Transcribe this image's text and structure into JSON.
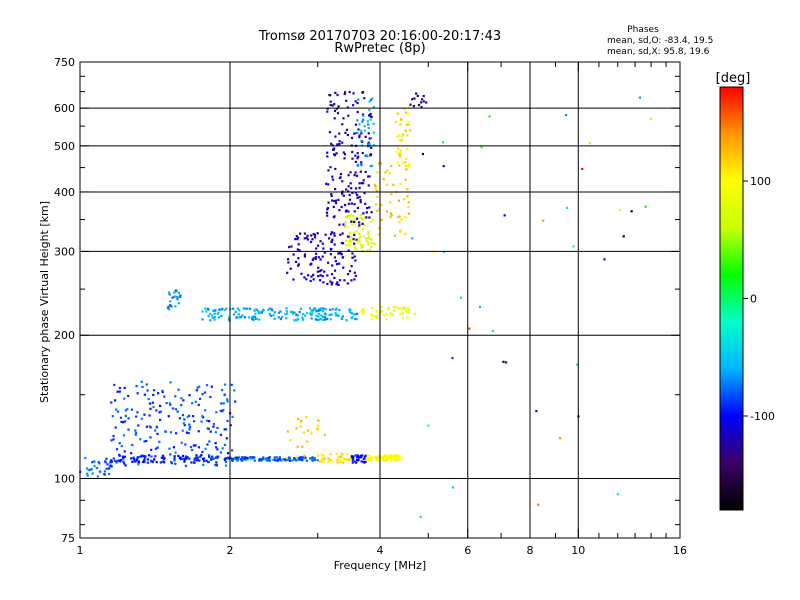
{
  "chart_data": {
    "type": "scatter",
    "title": "Tromsø 20170703 20:16:00-20:17:43",
    "subtitle": "RwPretec (8p)",
    "stats": {
      "heading": "Phases",
      "line_o": "mean, sd,O: -83.4, 19.5",
      "line_x": "mean, sd,X:  95.8, 19.6"
    },
    "xlabel": "Frequency [MHz]",
    "ylabel": "Stationary phase Virtual Height [km]",
    "xscale": "log",
    "yscale": "log",
    "xlim": [
      1,
      16
    ],
    "ylim": [
      75,
      750
    ],
    "x_ticks": [
      1,
      2,
      4,
      6,
      8,
      10,
      16
    ],
    "x_tick_labels": [
      "1",
      "2",
      "4",
      "6",
      "8",
      "10",
      "16"
    ],
    "x_grid": [
      2,
      4,
      6,
      8,
      10
    ],
    "y_ticks": [
      75,
      100,
      200,
      300,
      400,
      500,
      600,
      750
    ],
    "y_tick_labels": [
      "75",
      "100",
      "200",
      "300",
      "400",
      "500",
      "600",
      "750"
    ],
    "y_grid": [
      100,
      200,
      300,
      400,
      500,
      600
    ],
    "grid": true,
    "colorbar": {
      "label": "[deg]",
      "range": [
        -180,
        180
      ],
      "ticks": [
        -100,
        0,
        100
      ],
      "tick_labels": [
        "-100",
        "0",
        "100"
      ],
      "colors": [
        "#000000",
        "#3a0066",
        "#0000ff",
        "#00b4ff",
        "#00ffc8",
        "#00ff00",
        "#c8ff00",
        "#ffff00",
        "#ff9600",
        "#ff0000"
      ]
    },
    "series_groups": [
      {
        "x": [
          1.0,
          1.15
        ],
        "y": [
          100,
          112
        ],
        "phase": -75,
        "n": 30
      },
      {
        "x": [
          1.15,
          1.9
        ],
        "y": [
          108,
          112
        ],
        "phase": -95,
        "n": 110
      },
      {
        "x": [
          1.15,
          2.05
        ],
        "y": [
          106,
          160
        ],
        "phase": -85,
        "n": 210
      },
      {
        "x": [
          1.95,
          3.0
        ],
        "y": [
          109,
          111
        ],
        "phase": -82,
        "n": 120
      },
      {
        "x": [
          2.6,
          3.1
        ],
        "y": [
          110,
          135
        ],
        "phase": 120,
        "n": 22
      },
      {
        "x": [
          3.0,
          3.5
        ],
        "y": [
          108,
          113
        ],
        "phase": 110,
        "n": 45
      },
      {
        "x": [
          3.5,
          3.75
        ],
        "y": [
          108,
          112
        ],
        "phase": -100,
        "n": 30
      },
      {
        "x": [
          3.75,
          4.4
        ],
        "y": [
          109,
          112
        ],
        "phase": 95,
        "n": 70
      },
      {
        "x": [
          1.5,
          1.6
        ],
        "y": [
          225,
          250
        ],
        "phase": -70,
        "n": 22
      },
      {
        "x": [
          1.75,
          3.6
        ],
        "y": [
          215,
          228
        ],
        "phase": -60,
        "n": 170
      },
      {
        "x": [
          3.6,
          4.6
        ],
        "y": [
          215,
          230
        ],
        "phase": 90,
        "n": 45
      },
      {
        "x": [
          2.6,
          3.6
        ],
        "y": [
          255,
          330
        ],
        "phase": -115,
        "n": 130
      },
      {
        "x": [
          3.4,
          3.9
        ],
        "y": [
          300,
          360
        ],
        "phase": 70,
        "n": 70
      },
      {
        "x": [
          3.9,
          4.6
        ],
        "y": [
          320,
          470
        ],
        "phase": 120,
        "n": 50
      },
      {
        "x": [
          3.1,
          3.85
        ],
        "y": [
          340,
          650
        ],
        "phase": -120,
        "n": 180
      },
      {
        "x": [
          3.6,
          3.9
        ],
        "y": [
          450,
          640
        ],
        "phase": -60,
        "n": 35
      },
      {
        "x": [
          4.3,
          4.6
        ],
        "y": [
          450,
          620
        ],
        "phase": 110,
        "n": 40
      },
      {
        "x": [
          4.6,
          4.95
        ],
        "y": [
          600,
          650
        ],
        "phase": -130,
        "n": 12
      },
      {
        "x": [
          4.6,
          14.0
        ],
        "y": [
          80,
          650
        ],
        "phase": 0,
        "n": 40,
        "random_phase": true
      }
    ]
  }
}
